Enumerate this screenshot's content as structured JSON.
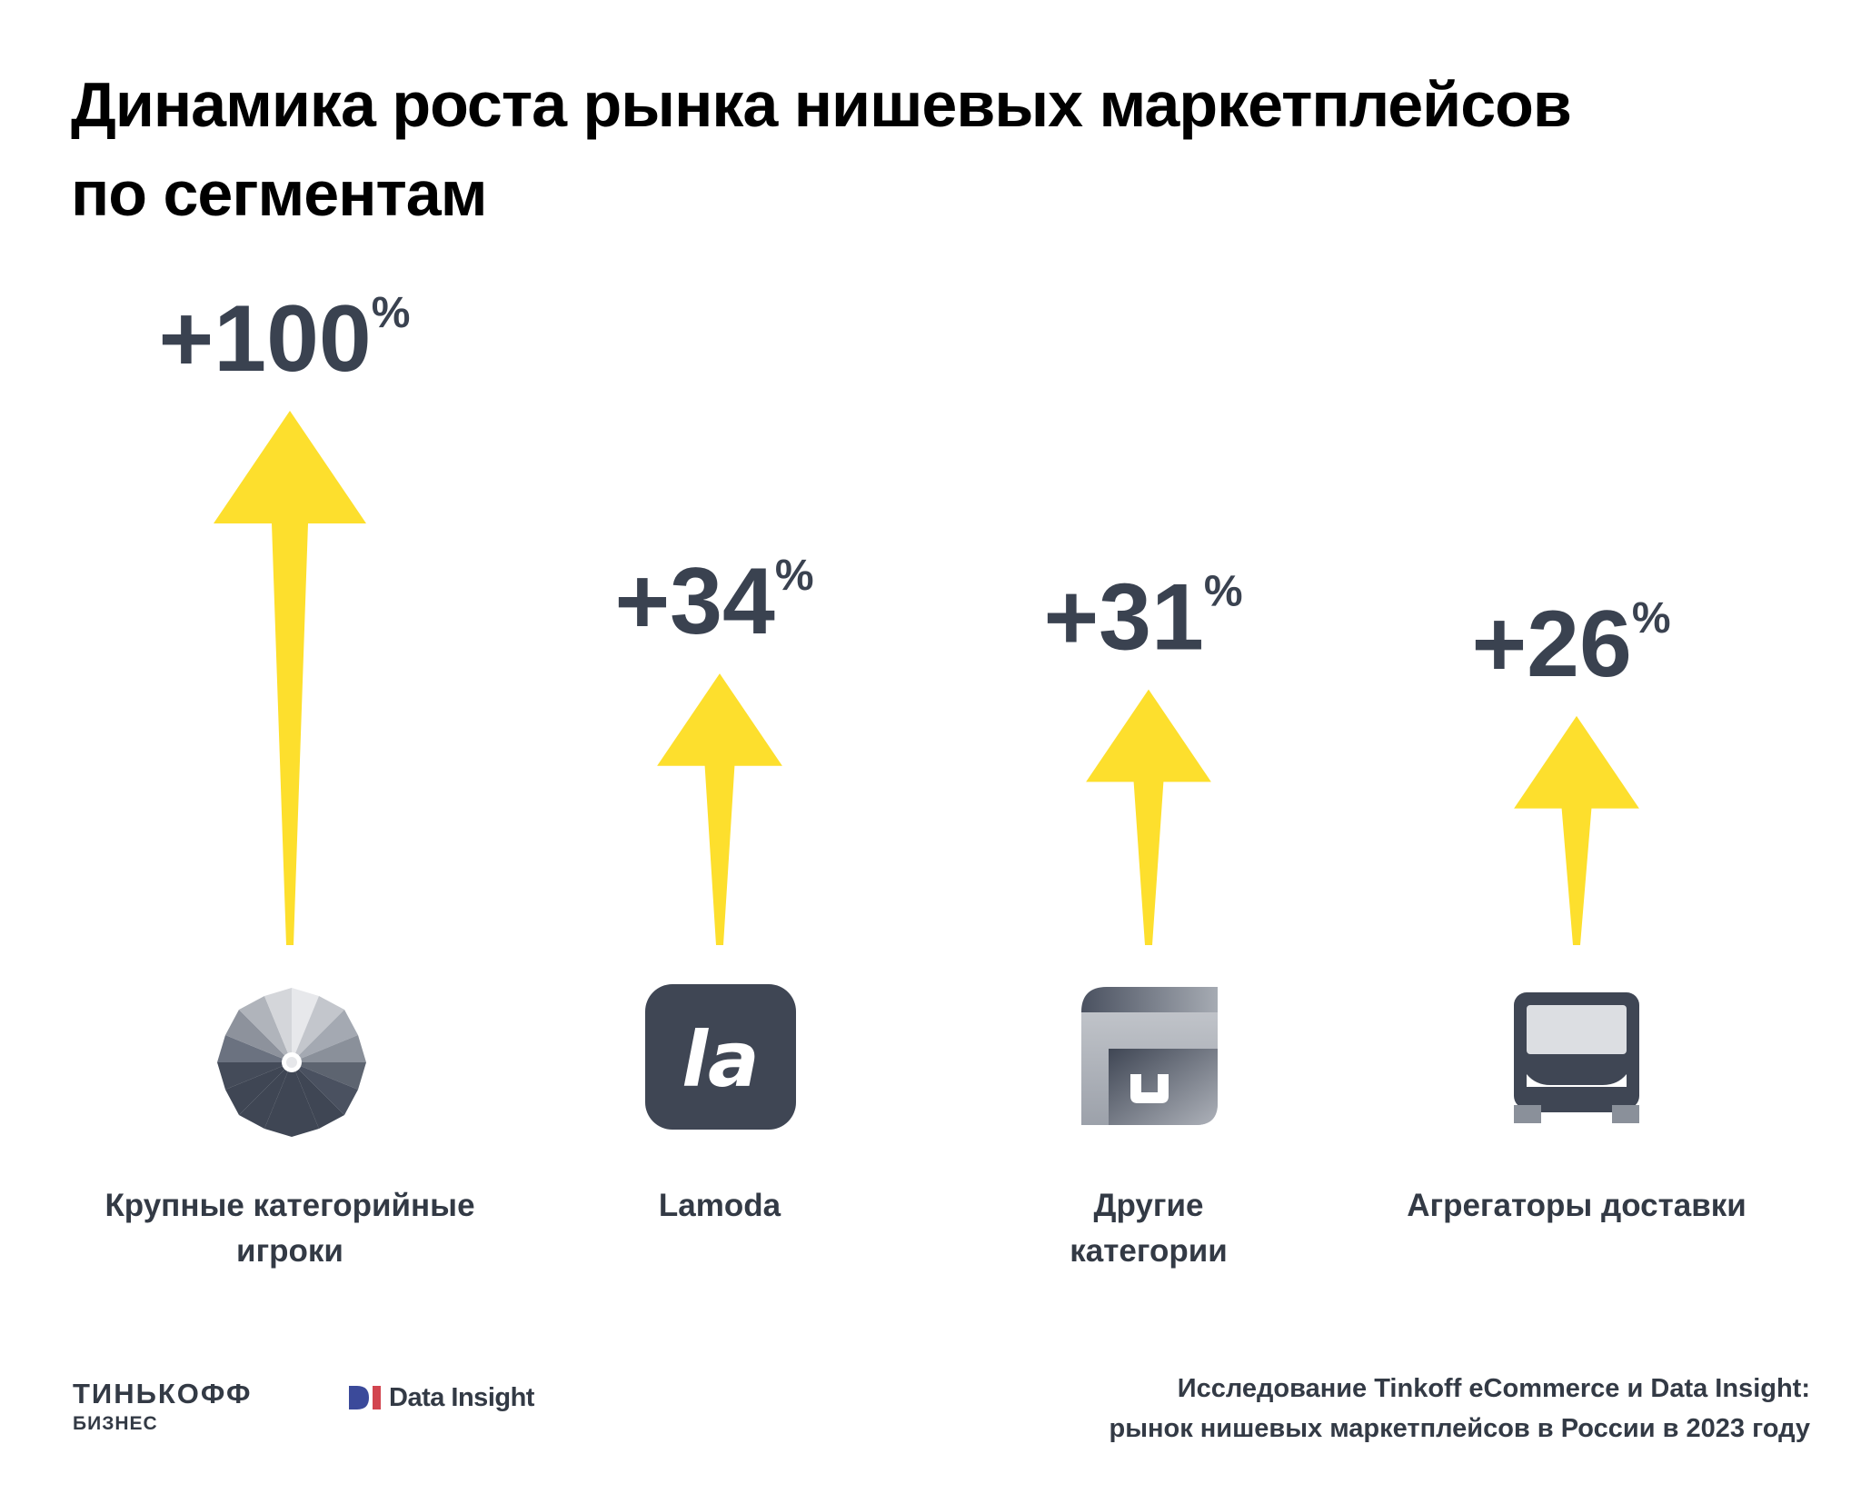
{
  "title": {
    "line1": "Динамика роста рынка нишевых маркетплейсов",
    "line2": "по сегментам"
  },
  "chart_data": {
    "type": "bar",
    "title": "Динамика роста рынка нишевых маркетплейсов по сегментам",
    "value_prefix": "+",
    "unit": "%",
    "categories": [
      "Крупные категорийные игроки",
      "Lamoda",
      "Другие категории",
      "Агрегаторы доставки"
    ],
    "label_lines": [
      [
        "Крупные категорийные",
        "игроки"
      ],
      [
        "Lamoda"
      ],
      [
        "Другие",
        "категории"
      ],
      [
        "Агрегаторы доставки"
      ]
    ],
    "values": [
      100,
      34,
      31,
      26
    ],
    "colors": {
      "arrow": "#fddf2d",
      "value_text": "#3a4250"
    }
  },
  "icons": [
    "umbrella-icon",
    "lamoda-logo-icon",
    "shop-window-icon",
    "bus-icon"
  ],
  "lamoda_logo_text": "la",
  "footer": {
    "brand_line1": "ТИНЬКОФФ",
    "brand_line2": "БИЗНЕС",
    "partner": "Data Insight",
    "source_line1": "Исследование Tinkoff eCommerce и Data Insight:",
    "source_line2": "рынок нишевых маркетплейсов в России в 2023 году"
  }
}
